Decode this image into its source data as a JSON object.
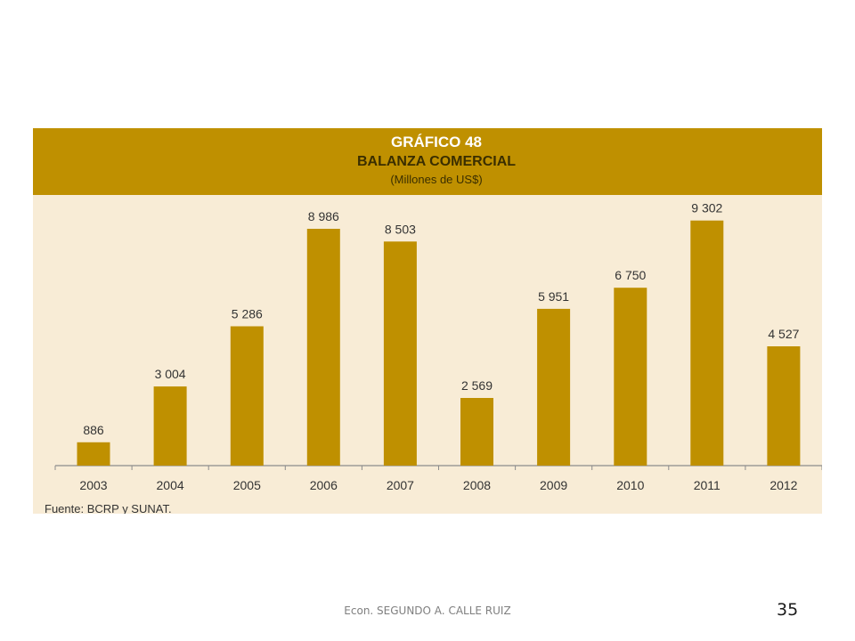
{
  "figure": {
    "number": "GRÁFICO 48",
    "title": "BALANZA COMERCIAL",
    "subtitle": "(Millones de US$)",
    "source": "Fuente: BCRP y SUNAT.",
    "colors": {
      "header": "#bf9000",
      "bar": "#bf9000",
      "background": "#f8ecd6"
    }
  },
  "chart_data": {
    "type": "bar",
    "title": "BALANZA COMERCIAL",
    "subtitle": "(Millones de US$)",
    "categories": [
      "2003",
      "2004",
      "2005",
      "2006",
      "2007",
      "2008",
      "2009",
      "2010",
      "2011",
      "2012"
    ],
    "values": [
      886,
      3004,
      5286,
      8986,
      8503,
      2569,
      5951,
      6750,
      9302,
      4527
    ],
    "value_labels": [
      "886",
      "3 004",
      "5 286",
      "8 986",
      "8 503",
      "2 569",
      "5 951",
      "6 750",
      "9 302",
      "4 527"
    ],
    "xlabel": "",
    "ylabel": "",
    "ylim": [
      0,
      10000
    ],
    "grid": false,
    "legend": "none"
  },
  "footer": {
    "author": "Econ. SEGUNDO A. CALLE RUIZ",
    "page_number": "35"
  }
}
